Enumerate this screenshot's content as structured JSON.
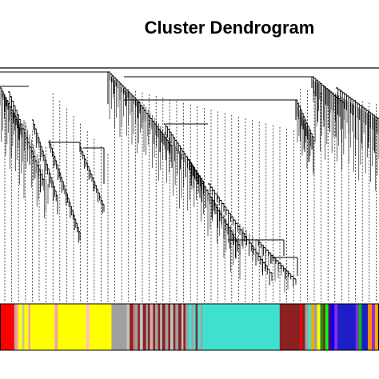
{
  "title": "Cluster Dendrogram",
  "colors": {
    "line": "#000000",
    "background": "#ffffff"
  },
  "module_color_bar": [
    {
      "color": "#ff0000",
      "w": 14
    },
    {
      "color": "#c8a0a0",
      "w": 2
    },
    {
      "color": "#f4a0b0",
      "w": 2
    },
    {
      "color": "#ffff00",
      "w": 4
    },
    {
      "color": "#c0c0c0",
      "w": 2
    },
    {
      "color": "#ffff00",
      "w": 4
    },
    {
      "color": "#f4a0b0",
      "w": 2
    },
    {
      "color": "#ffff00",
      "w": 24
    },
    {
      "color": "#f4a0b0",
      "w": 3
    },
    {
      "color": "#ffff00",
      "w": 28
    },
    {
      "color": "#ffc0cb",
      "w": 3
    },
    {
      "color": "#ffff00",
      "w": 22
    },
    {
      "color": "#a0a0a0",
      "w": 15
    },
    {
      "color": "#c0c0c0",
      "w": 3
    },
    {
      "color": "#8b2020",
      "w": 3
    },
    {
      "color": "#d06060",
      "w": 2
    },
    {
      "color": "#a0a0a0",
      "w": 3
    },
    {
      "color": "#8b2020",
      "w": 2
    },
    {
      "color": "#c0c0c0",
      "w": 3
    },
    {
      "color": "#8b2020",
      "w": 3
    },
    {
      "color": "#a0a0a0",
      "w": 2
    },
    {
      "color": "#8b2020",
      "w": 2
    },
    {
      "color": "#d0b0b0",
      "w": 3
    },
    {
      "color": "#8b2020",
      "w": 2
    },
    {
      "color": "#a0a0a0",
      "w": 3
    },
    {
      "color": "#8b2020",
      "w": 2
    },
    {
      "color": "#c0c0c0",
      "w": 2
    },
    {
      "color": "#8b2020",
      "w": 3
    },
    {
      "color": "#a0a0a0",
      "w": 3
    },
    {
      "color": "#8b2020",
      "w": 2
    },
    {
      "color": "#c0c0c0",
      "w": 3
    },
    {
      "color": "#8b2020",
      "w": 2
    },
    {
      "color": "#a0a0a0",
      "w": 3
    },
    {
      "color": "#8b2020",
      "w": 3
    },
    {
      "color": "#c0c0c0",
      "w": 2
    },
    {
      "color": "#8b2020",
      "w": 2
    },
    {
      "color": "#a0a0a0",
      "w": 3
    },
    {
      "color": "#40e0d0",
      "w": 3
    },
    {
      "color": "#a0a0a0",
      "w": 2
    },
    {
      "color": "#40e0d0",
      "w": 2
    },
    {
      "color": "#8b2020",
      "w": 2
    },
    {
      "color": "#40e0d0",
      "w": 3
    },
    {
      "color": "#a0a0a0",
      "w": 2
    },
    {
      "color": "#40e0d0",
      "w": 76
    },
    {
      "color": "#8b2020",
      "w": 20
    },
    {
      "color": "#ff0000",
      "w": 2
    },
    {
      "color": "#8b2020",
      "w": 3
    },
    {
      "color": "#a0a0a0",
      "w": 3
    },
    {
      "color": "#40e0d0",
      "w": 3
    },
    {
      "color": "#ffa500",
      "w": 3
    },
    {
      "color": "#a0a0a0",
      "w": 3
    },
    {
      "color": "#ffff00",
      "w": 3
    },
    {
      "color": "#228b22",
      "w": 3
    },
    {
      "color": "#8b2020",
      "w": 2
    },
    {
      "color": "#00ff00",
      "w": 3
    },
    {
      "color": "#4b0082",
      "w": 3
    },
    {
      "color": "#0000ff",
      "w": 3
    },
    {
      "color": "#8a2be2",
      "w": 3
    },
    {
      "color": "#1e1ec8",
      "w": 18
    },
    {
      "color": "#8a2be2",
      "w": 3
    },
    {
      "color": "#00c000",
      "w": 3
    },
    {
      "color": "#1e1ec8",
      "w": 6
    },
    {
      "color": "#ff8c00",
      "w": 4
    },
    {
      "color": "#8a2be2",
      "w": 3
    },
    {
      "color": "#ffa500",
      "w": 4
    }
  ]
}
